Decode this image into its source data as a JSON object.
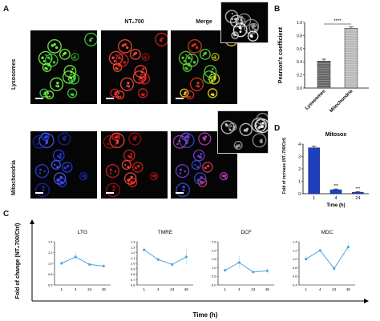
{
  "panels": {
    "A": {
      "letter": "A",
      "columns": [
        "",
        "NT₈700",
        "Merge"
      ],
      "rows": [
        "Lysosomes",
        "Mitochondria"
      ]
    },
    "B": {
      "letter": "B"
    },
    "C": {
      "letter": "C"
    },
    "D": {
      "letter": "D"
    }
  },
  "chart_data": [
    {
      "id": "B",
      "type": "bar",
      "categories": [
        "Lysosomes",
        "Mitochondria"
      ],
      "values": [
        0.41,
        0.91
      ],
      "errors": [
        0.03,
        0.02
      ],
      "ylabel": "Pearson's coefficient",
      "ylim": [
        0,
        1.0
      ],
      "yticks": [
        "0.0",
        "0.2",
        "0.4",
        "0.6",
        "0.8",
        "1.0"
      ],
      "significance": "****",
      "colors": [
        "#666666",
        "#b8b8b8"
      ]
    },
    {
      "id": "D",
      "type": "bar",
      "title": "Mitosox",
      "categories": [
        "1",
        "4",
        "24"
      ],
      "values": [
        3.7,
        0.32,
        0.12
      ],
      "errors": [
        0.15,
        0.06,
        0.04
      ],
      "xlabel": "Time (h)",
      "ylabel": "Fold of increase (NT₈700/Ctrl)",
      "ylim": [
        0,
        4
      ],
      "yticks": [
        "0",
        "1",
        "2",
        "3",
        "4"
      ],
      "significance": [
        "",
        "***",
        "***"
      ],
      "color": "#1f3fbf"
    },
    {
      "id": "C",
      "type": "line",
      "shared_ylabel": "Fold of change (NT₈700/Ctrl)",
      "shared_xlabel": "Time (h)",
      "x": [
        "1",
        "4",
        "24",
        "48"
      ],
      "color": "#4fa7e0",
      "subplots": [
        {
          "title": "LTG",
          "values": [
            1.0,
            1.12,
            0.98,
            0.95
          ],
          "errors": [
            0.02,
            0.08,
            0.02,
            0.02
          ],
          "ylim": [
            0.6,
            1.4
          ],
          "yticks": [
            "0.6",
            "0.8",
            "1.0",
            "1.2",
            "1.4"
          ]
        },
        {
          "title": "TMRE",
          "values": [
            1.25,
            1.07,
            0.98,
            1.12
          ],
          "errors": [
            0.05,
            0.03,
            0.02,
            0.15
          ],
          "ylim": [
            0.6,
            1.4
          ],
          "yticks": [
            "0.6",
            "0.7",
            "0.8",
            "0.9",
            "1.0",
            "1.1",
            "1.2",
            "1.3",
            "1.4"
          ]
        },
        {
          "title": "DCF",
          "values": [
            0.85,
            1.3,
            0.75,
            0.82
          ],
          "errors": [
            0.05,
            0.35,
            0.05,
            0.15
          ],
          "ylim": [
            0.0,
            2.5
          ],
          "yticks": [
            "0.0",
            "0.5",
            "1.0",
            "1.5",
            "2.0",
            "2.5"
          ]
        },
        {
          "title": "MDC",
          "values": [
            1.0,
            1.2,
            0.78,
            1.28
          ],
          "errors": [
            0.05,
            0.03,
            0.05,
            0.12
          ],
          "ylim": [
            0.4,
            1.4
          ],
          "yticks": [
            "0.4",
            "0.6",
            "0.8",
            "1.0",
            "1.2",
            "1.4"
          ]
        }
      ]
    }
  ]
}
